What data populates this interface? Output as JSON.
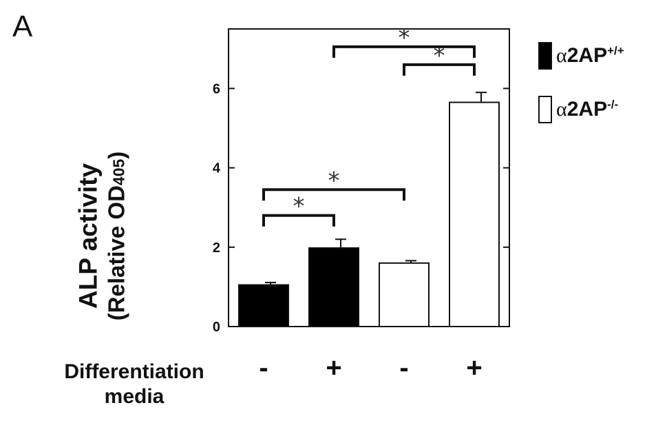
{
  "panel_label": "A",
  "chart_data": {
    "type": "bar",
    "ylabel": "ALP activity",
    "ylabel_line2": "(Relative OD",
    "ylabel_subscript": "405",
    "ylabel_close": ")",
    "xlabel": "Differentiation media",
    "ylim": [
      0,
      7.5
    ],
    "yticks": [
      0,
      2,
      4,
      6
    ],
    "categories": [
      "-",
      "+",
      "-",
      "+"
    ],
    "values": [
      1.05,
      1.98,
      1.6,
      5.65
    ],
    "errors": [
      0.06,
      0.22,
      0.06,
      0.25
    ],
    "bar_series": [
      "a2AP+/+",
      "a2AP+/+",
      "a2AP-/-",
      "a2AP-/-"
    ],
    "series": [
      {
        "name": "α2AP+/+",
        "greek": "α",
        "text": "2AP",
        "sup": "+/+",
        "color": "#000000",
        "fill": "#000000"
      },
      {
        "name": "α2AP-/-",
        "greek": "α",
        "text": "2AP",
        "sup": "-/-",
        "color": "#000000",
        "fill": "#ffffff"
      }
    ],
    "legend_position": "right",
    "grid": false,
    "significance": [
      {
        "from": 0,
        "to": 1,
        "label": "*",
        "level": 2.8
      },
      {
        "from": 0,
        "to": 2,
        "label": "*",
        "level": 3.45
      },
      {
        "from": 2,
        "to": 3,
        "label": "*",
        "level": 6.6
      },
      {
        "from": 1,
        "to": 3,
        "label": "*",
        "level": 7.05
      }
    ]
  }
}
